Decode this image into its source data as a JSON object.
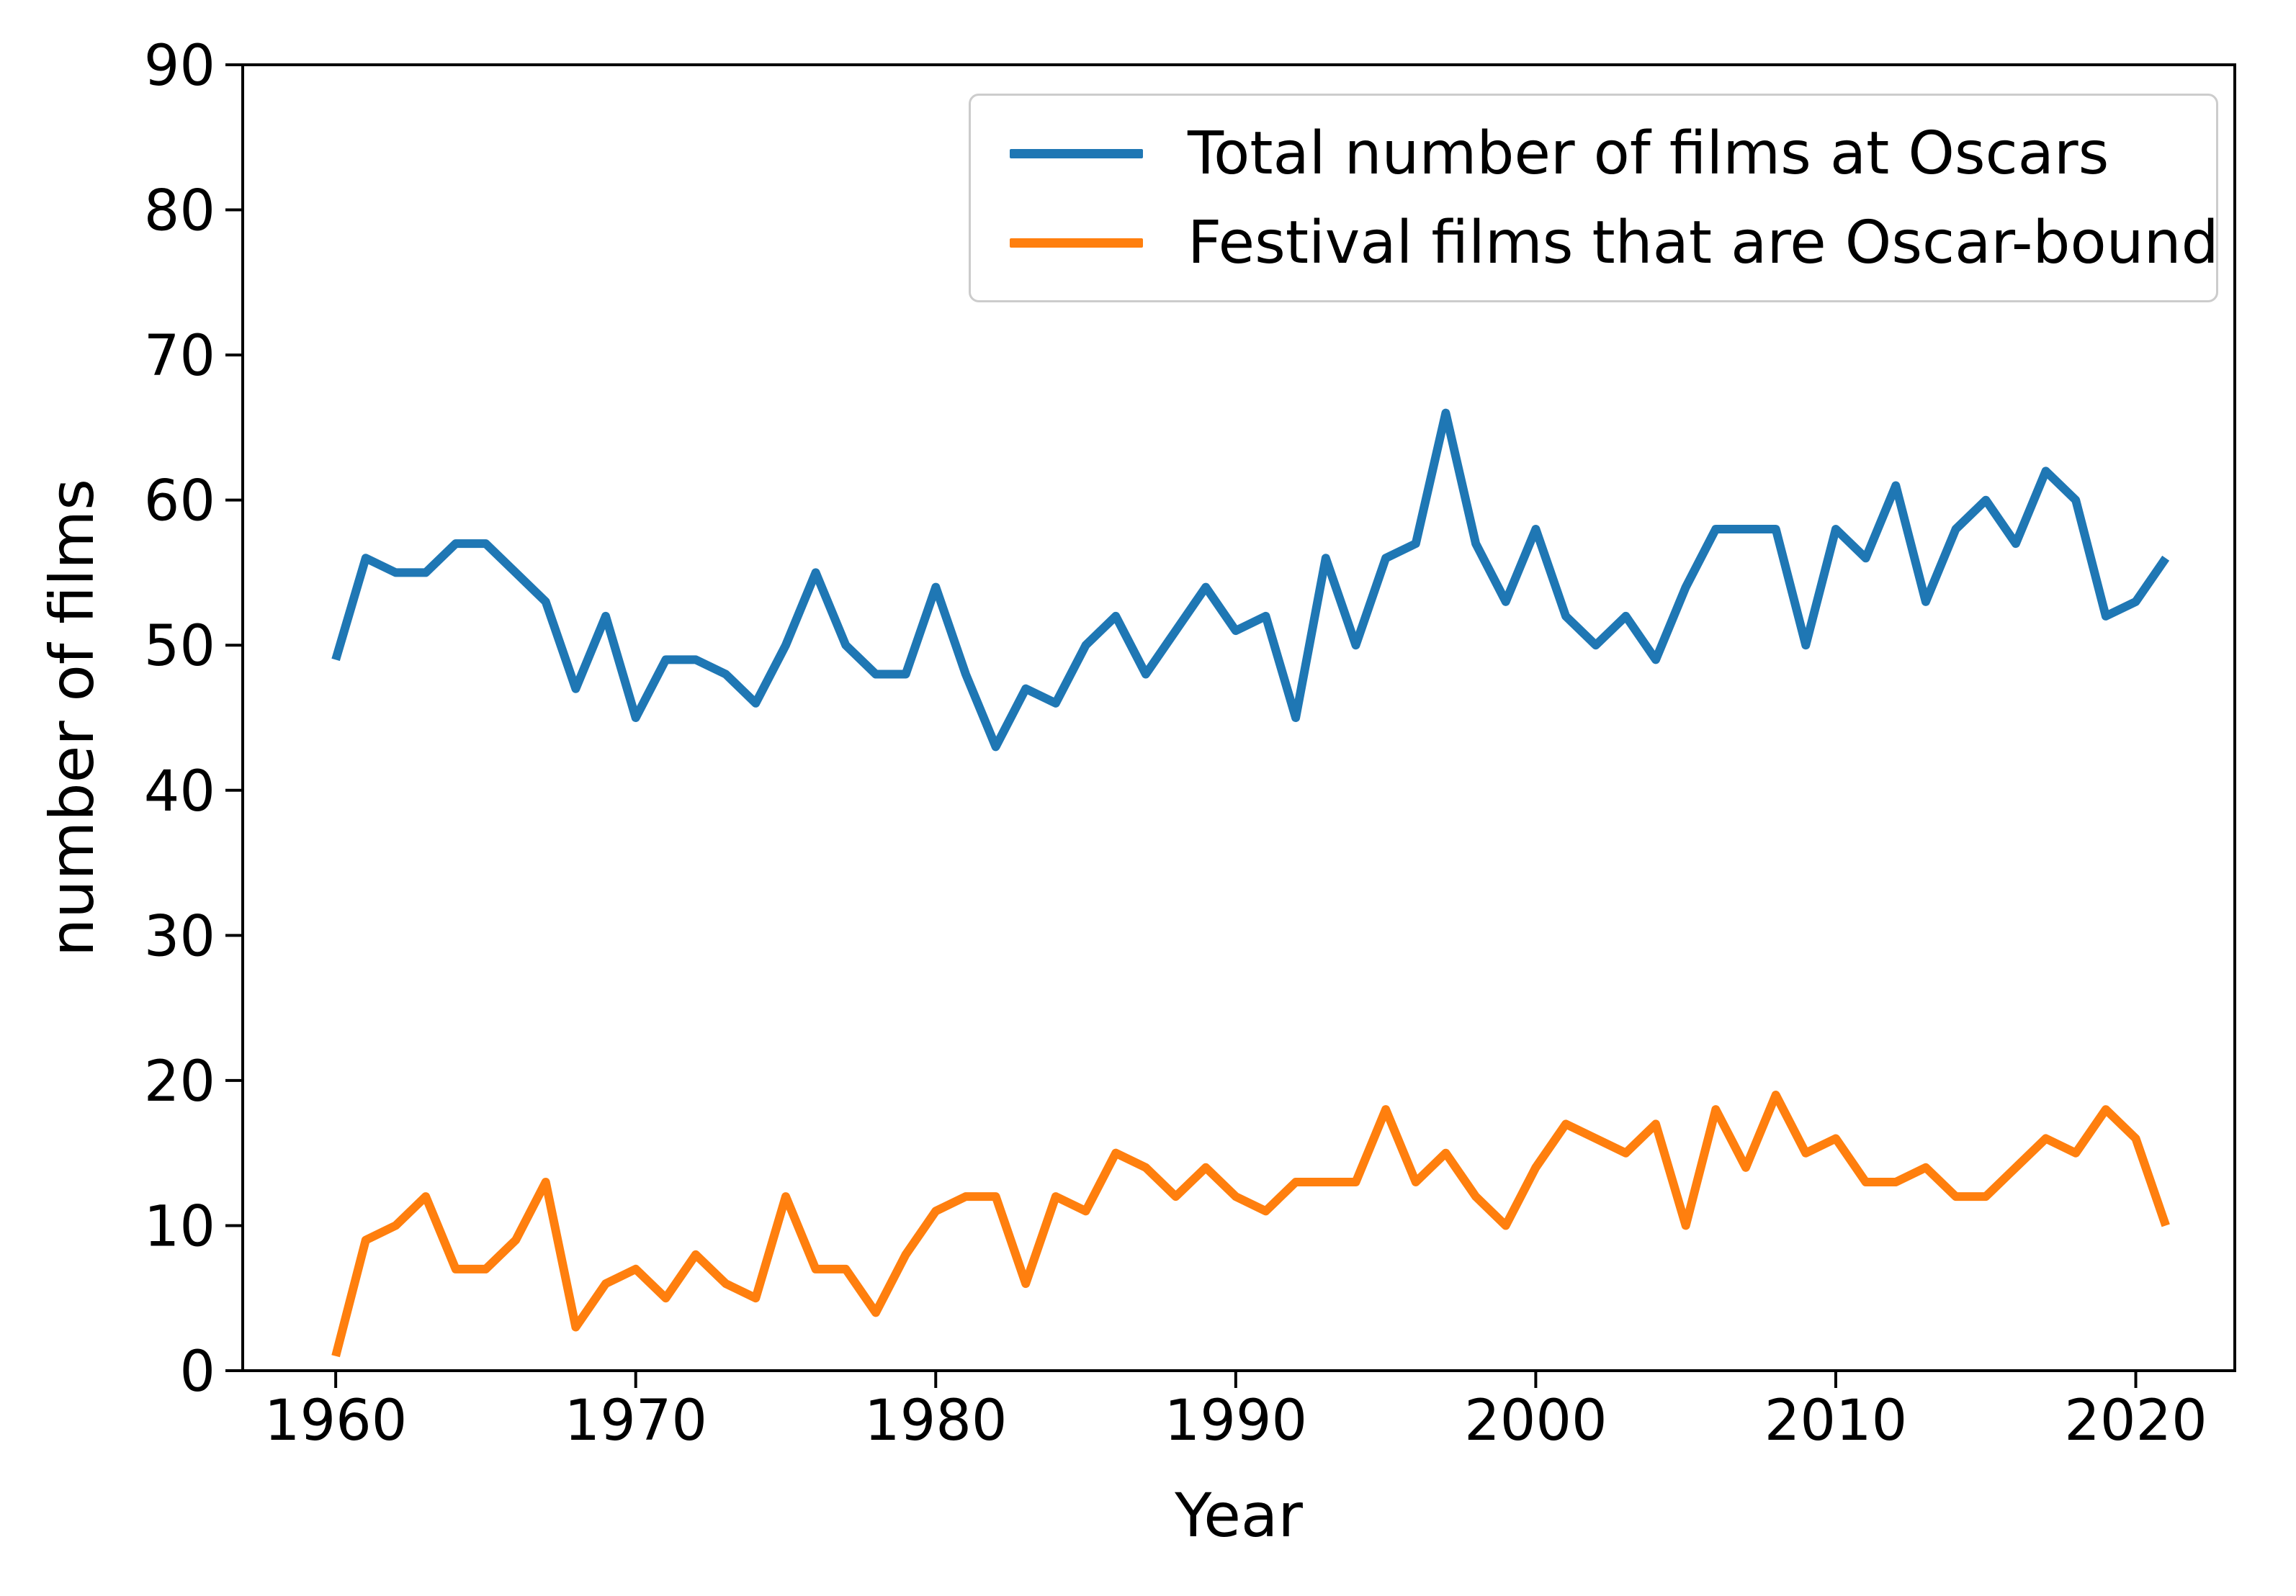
{
  "chart_data": {
    "type": "line",
    "x": [
      1960,
      1961,
      1962,
      1963,
      1964,
      1965,
      1966,
      1967,
      1968,
      1969,
      1970,
      1971,
      1972,
      1973,
      1974,
      1975,
      1976,
      1977,
      1978,
      1979,
      1980,
      1981,
      1982,
      1983,
      1984,
      1985,
      1986,
      1987,
      1988,
      1989,
      1990,
      1991,
      1992,
      1993,
      1994,
      1995,
      1996,
      1997,
      1998,
      1999,
      2000,
      2001,
      2002,
      2003,
      2004,
      2005,
      2006,
      2007,
      2008,
      2009,
      2010,
      2011,
      2012,
      2013,
      2014,
      2015,
      2016,
      2017,
      2018,
      2019,
      2020,
      2021
    ],
    "series": [
      {
        "name": "Total number of films at Oscars",
        "color": "#1f77b4",
        "values": [
          49,
          56,
          55,
          55,
          57,
          57,
          55,
          53,
          47,
          52,
          45,
          49,
          49,
          48,
          46,
          50,
          55,
          50,
          48,
          48,
          54,
          48,
          43,
          47,
          46,
          50,
          52,
          48,
          51,
          54,
          51,
          52,
          45,
          56,
          50,
          56,
          57,
          66,
          57,
          53,
          58,
          52,
          50,
          52,
          49,
          54,
          58,
          58,
          58,
          50,
          58,
          56,
          61,
          53,
          58,
          60,
          57,
          62,
          60,
          52,
          53,
          56
        ]
      },
      {
        "name": "Festival films that are Oscar-bound",
        "color": "#ff7f0e",
        "values": [
          1,
          9,
          10,
          12,
          7,
          7,
          9,
          13,
          3,
          6,
          7,
          5,
          8,
          6,
          5,
          12,
          7,
          7,
          4,
          8,
          11,
          12,
          12,
          6,
          12,
          11,
          15,
          14,
          12,
          14,
          12,
          11,
          13,
          13,
          13,
          18,
          13,
          15,
          12,
          10,
          14,
          17,
          16,
          15,
          17,
          10,
          18,
          14,
          19,
          15,
          16,
          13,
          13,
          14,
          12,
          12,
          14,
          16,
          15,
          18,
          16,
          10
        ]
      }
    ],
    "title": "",
    "xlabel": "Year",
    "ylabel": "number of films",
    "xlim": [
      1956.9,
      2023.3
    ],
    "ylim": [
      0,
      90
    ],
    "xticks": [
      1960,
      1970,
      1980,
      1990,
      2000,
      2010,
      2020
    ],
    "yticks": [
      0,
      10,
      20,
      30,
      40,
      50,
      60,
      70,
      80,
      90
    ],
    "grid": false,
    "legend_position": "upper right",
    "axis_color": "#000000"
  }
}
